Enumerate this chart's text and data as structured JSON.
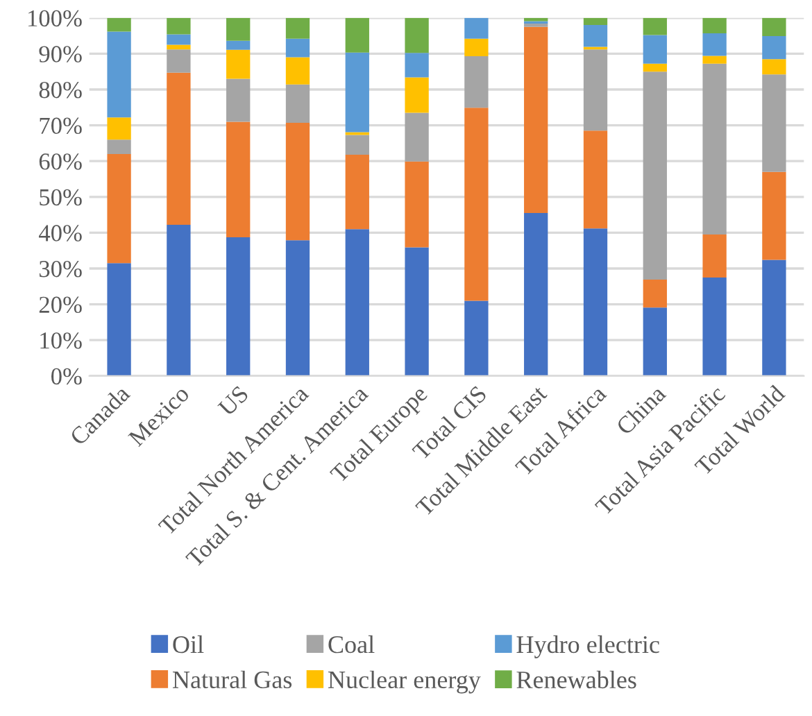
{
  "chart_data": {
    "type": "bar",
    "stacked": true,
    "categories": [
      "Canada",
      "Mexico",
      "US",
      "Total North America",
      "Total S. & Cent. America",
      "Total Europe",
      "Total CIS",
      "Total Middle East",
      "Total Africa",
      "China",
      "Total Asia Pacific",
      "Total World"
    ],
    "series": [
      {
        "name": "Oil",
        "color": "#4472c4",
        "values": [
          31.5,
          42.2,
          38.7,
          37.9,
          41,
          35.9,
          21,
          45.5,
          41.2,
          19.1,
          27.5,
          32.4
        ]
      },
      {
        "name": "Natural Gas",
        "color": "#ed7d31",
        "values": [
          30.5,
          42.5,
          32.3,
          32.8,
          20.8,
          24,
          53.9,
          52,
          27.3,
          7.8,
          12,
          24.6
        ]
      },
      {
        "name": "Coal",
        "color": "#a5a5a5",
        "values": [
          4,
          6.5,
          12,
          10.7,
          5.5,
          13.6,
          14.4,
          0.9,
          22.7,
          58.1,
          47.7,
          27.2
        ]
      },
      {
        "name": "Nuclear energy",
        "color": "#ffc000",
        "values": [
          6.2,
          1.3,
          8.1,
          7.6,
          0.8,
          9.9,
          4.9,
          0,
          0.7,
          2.2,
          2.2,
          4.3
        ]
      },
      {
        "name": "Hydro electric",
        "color": "#5b9bd5",
        "values": [
          24,
          2.9,
          2.5,
          5.2,
          22.2,
          6.8,
          5.8,
          0.7,
          6.1,
          8,
          6.3,
          6.4
        ]
      },
      {
        "name": "Renewables",
        "color": "#70ad47",
        "values": [
          3.8,
          4.6,
          6.4,
          5.8,
          9.7,
          9.8,
          0,
          0.9,
          2,
          4.8,
          4.3,
          5.1
        ]
      }
    ],
    "ylim": [
      0,
      100
    ],
    "yticks": [
      {
        "value": 0,
        "label": "0%"
      },
      {
        "value": 10,
        "label": "10%"
      },
      {
        "value": 20,
        "label": "20%"
      },
      {
        "value": 30,
        "label": "30%"
      },
      {
        "value": 40,
        "label": "40%"
      },
      {
        "value": 50,
        "label": "50%"
      },
      {
        "value": 60,
        "label": "60%"
      },
      {
        "value": 70,
        "label": "70%"
      },
      {
        "value": 80,
        "label": "80%"
      },
      {
        "value": 90,
        "label": "90%"
      },
      {
        "value": 100,
        "label": "100%"
      }
    ],
    "grid": "y",
    "legend": "bottom"
  }
}
